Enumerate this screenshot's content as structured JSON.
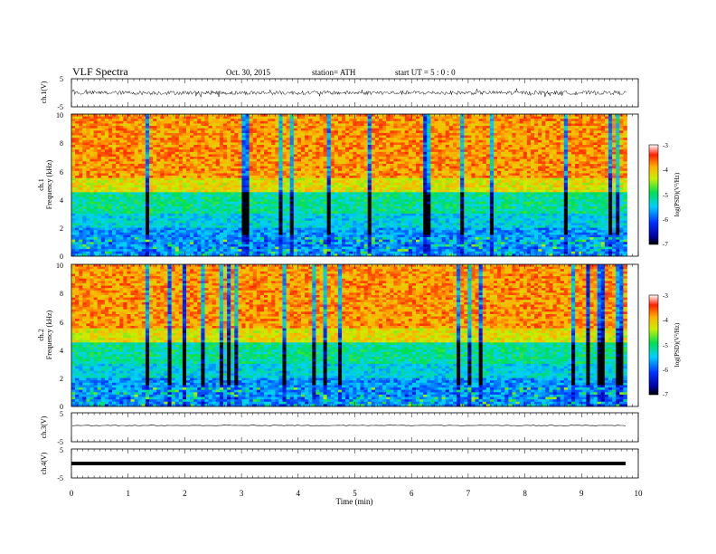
{
  "header": {
    "title": "VLF  Spectra",
    "date": "Oct. 30, 2015",
    "station": "station= ATH",
    "start": "start  UT  =   5 : 0  : 0"
  },
  "chart_data": [
    {
      "type": "line",
      "panel": "ch1-waveform",
      "ylabel": "ch.1(V)",
      "ylim": [
        -5,
        5
      ],
      "y_ticks": [
        "5",
        "-5"
      ],
      "amplitude_V": 1.2,
      "x_range_min": [
        0,
        9.8
      ]
    },
    {
      "type": "heatmap",
      "panel": "ch1-spectrogram",
      "ylabel_top": "ch.1",
      "ylabel": "Frequency  (kHz)",
      "ylim": [
        0,
        10
      ],
      "y_ticks": [
        "0",
        "2",
        "4",
        "6",
        "8",
        "10"
      ],
      "x_range_min": [
        0,
        9.8
      ],
      "colorbar": {
        "label": "log(PSD)(V²/Hz)",
        "range": [
          -7,
          -3
        ],
        "ticks": [
          "-3",
          "-4",
          "-5",
          "-6",
          "-7"
        ]
      }
    },
    {
      "type": "heatmap",
      "panel": "ch2-spectrogram",
      "ylabel_top": "ch.2",
      "ylabel": "Frequency  (kHz)",
      "ylim": [
        0,
        10
      ],
      "y_ticks": [
        "0",
        "2",
        "4",
        "6",
        "8",
        "10"
      ],
      "x_range_min": [
        0,
        9.8
      ],
      "colorbar": {
        "label": "log(PSD)(V²/Hz)",
        "range": [
          -7,
          -3
        ],
        "ticks": [
          "-3",
          "-4",
          "-5",
          "-6",
          "-7"
        ]
      }
    },
    {
      "type": "line",
      "panel": "ch3-waveform",
      "ylabel": "ch.3(V)",
      "ylim": [
        -5,
        5
      ],
      "y_ticks": [
        "5",
        "-5"
      ],
      "level_V": 0
    },
    {
      "type": "line",
      "panel": "ch4-waveform",
      "ylabel": "ch.4(V)",
      "ylim": [
        -5,
        5
      ],
      "y_ticks": [
        "5",
        "-5"
      ],
      "level_V": 0
    }
  ],
  "xaxis": {
    "label": "Time  (min)",
    "xlim": [
      0,
      10
    ],
    "ticks": [
      "0",
      "1",
      "2",
      "3",
      "4",
      "5",
      "6",
      "7",
      "8",
      "9",
      "10"
    ]
  }
}
